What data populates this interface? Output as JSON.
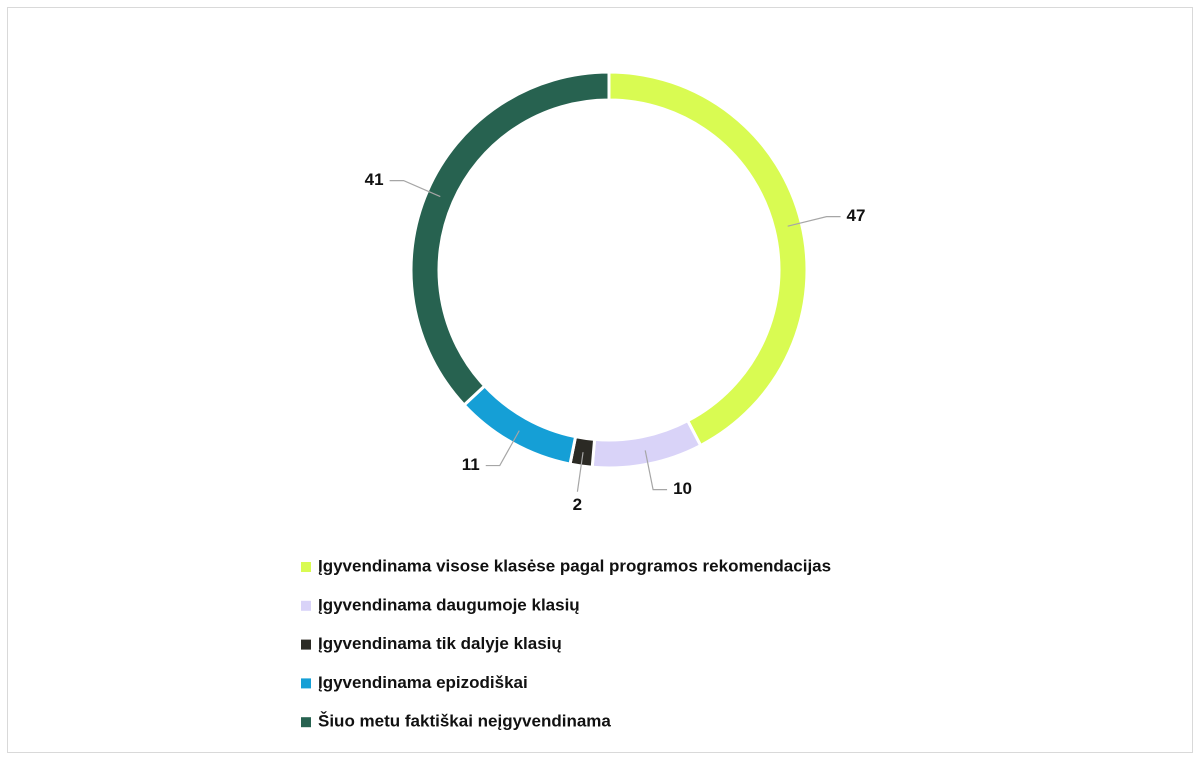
{
  "chart_data": {
    "type": "donut",
    "categories": [
      "Įgyvendinama visose klasėse pagal programos rekomendacijas",
      "Įgyvendinama daugumoje klasių",
      "Įgyvendinama tik dalyje klasių",
      "Įgyvendinama epizodiškai",
      "Šiuo metu faktiškai neįgyvendinama"
    ],
    "values": [
      47,
      10,
      2,
      11,
      41
    ],
    "colors": [
      "#d9fb52",
      "#d9d3f8",
      "#2b2a24",
      "#159fd6",
      "#276250"
    ]
  }
}
